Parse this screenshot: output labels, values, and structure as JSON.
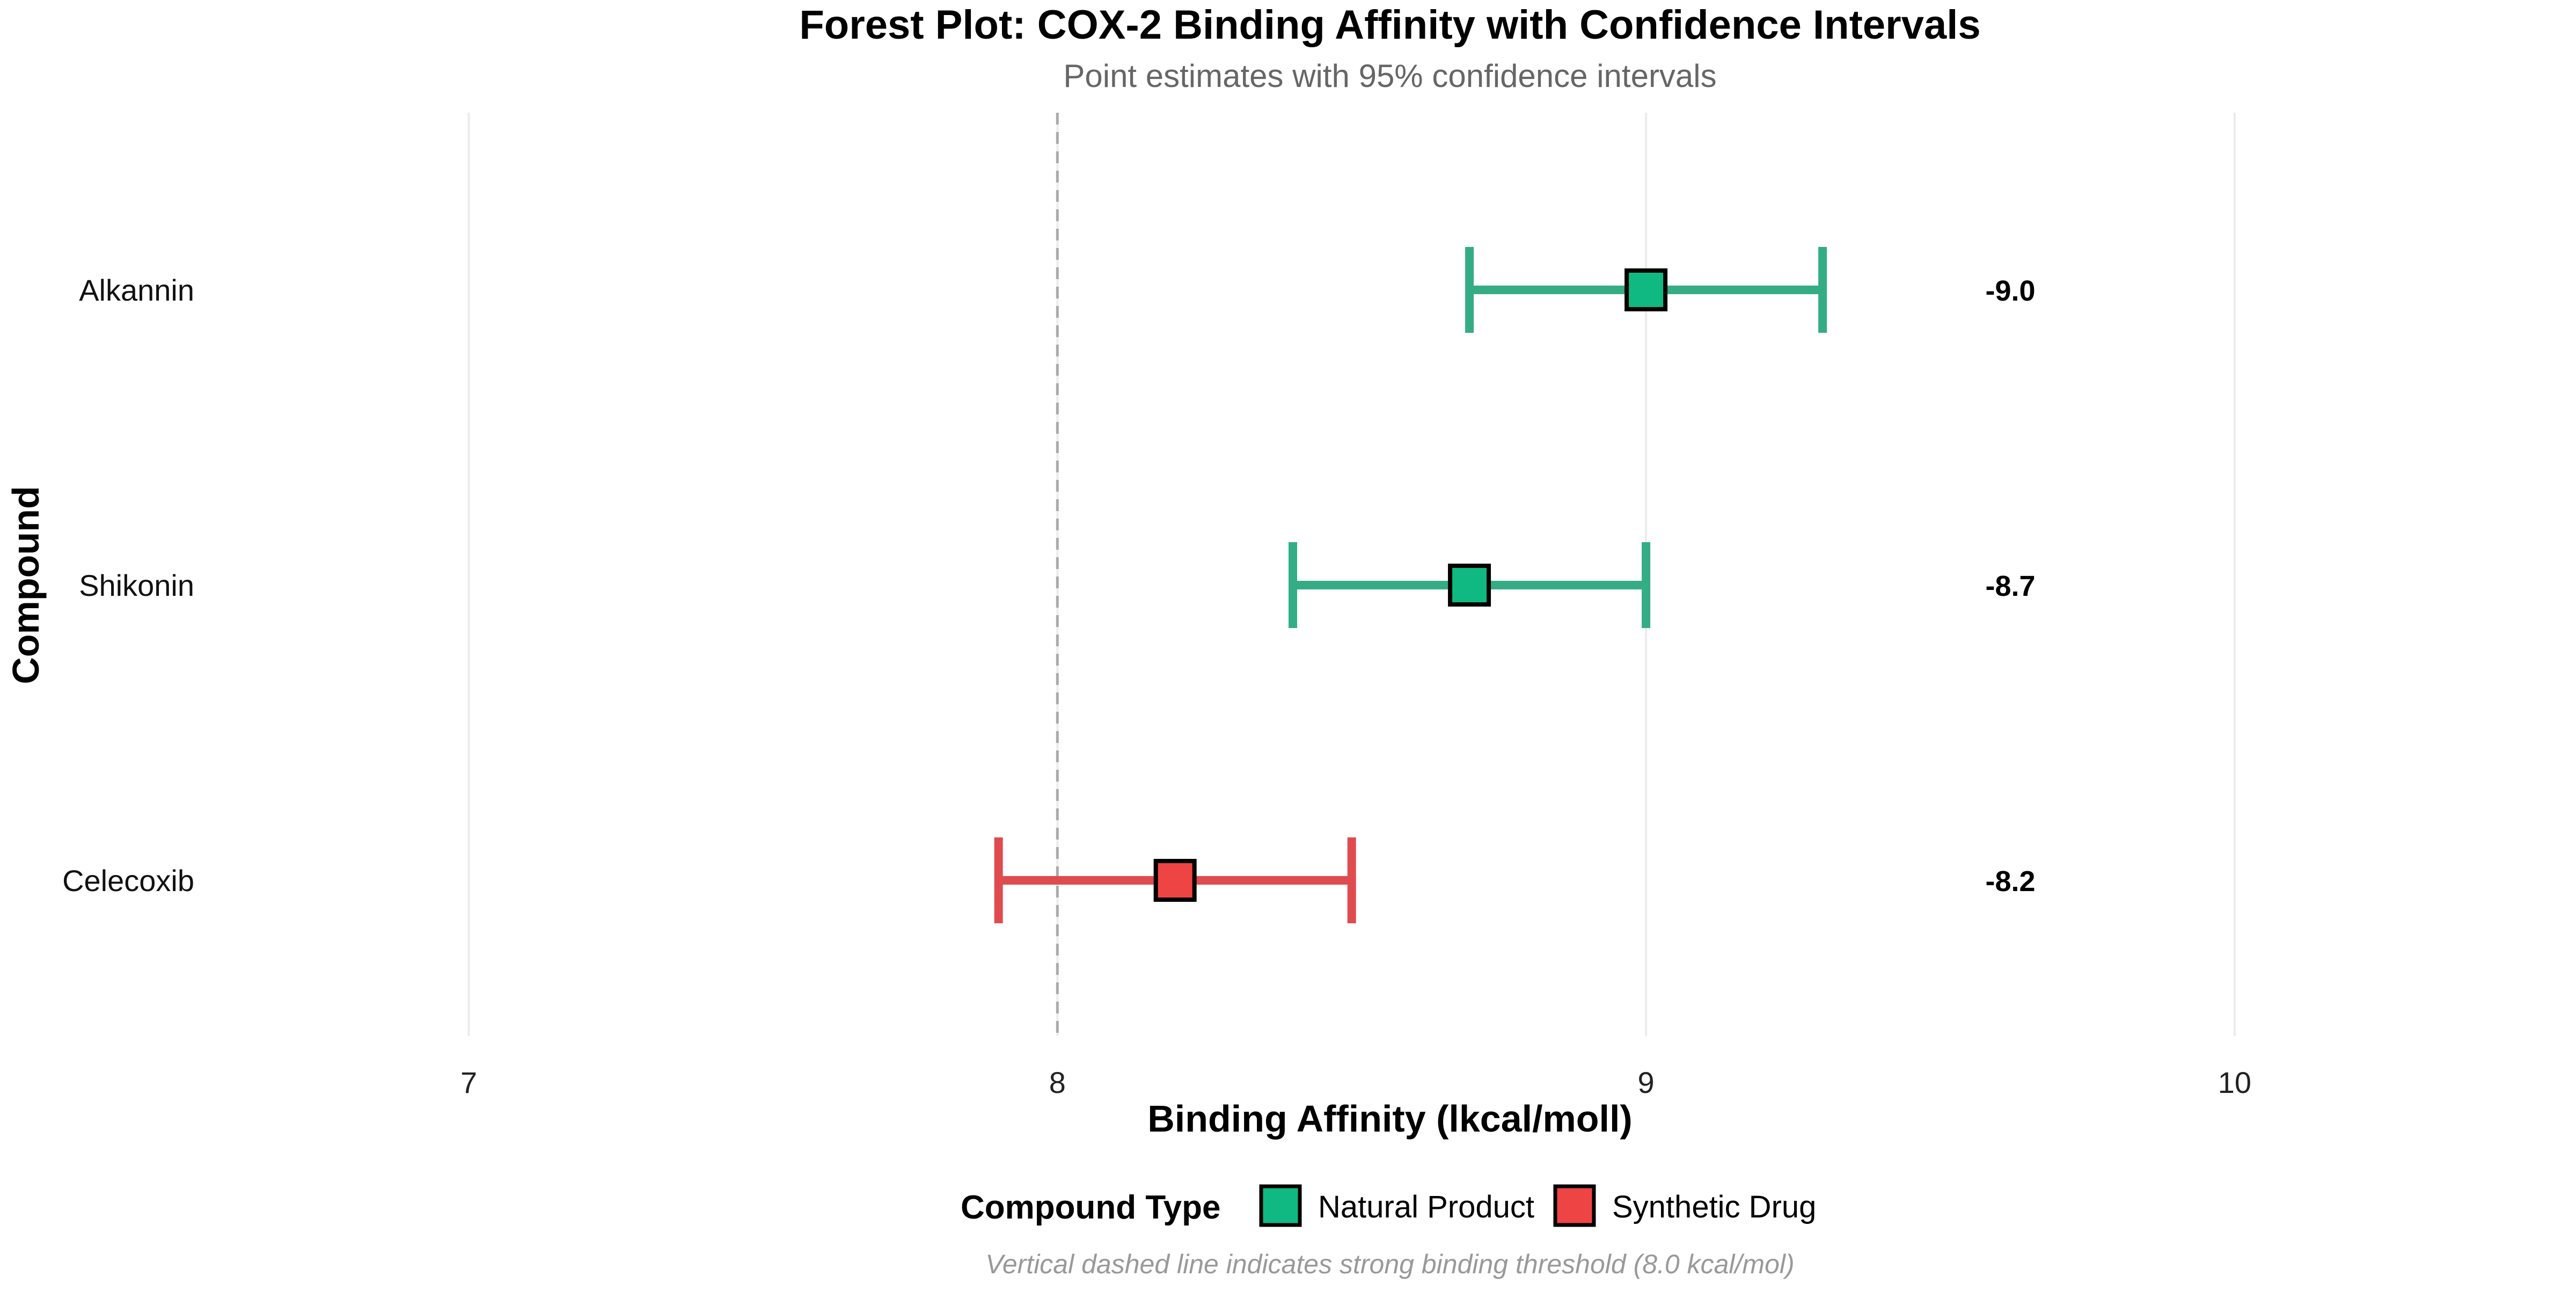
{
  "colors": {
    "natural": "#10B981",
    "synthetic": "#EF4444",
    "natural_line": "#34AD85",
    "synthetic_line": "#E04B4F",
    "grid": "#EBEBEB",
    "threshold": "#AAAAAA",
    "title": "#000000",
    "subtitle": "#666666",
    "caption": "#999999"
  },
  "chart_data": {
    "type": "forest",
    "title": "Forest Plot: COX-2 Binding Affinity with Confidence Intervals",
    "subtitle": "Point estimates with 95% confidence intervals",
    "xlabel": "Binding Affinity (lkcal/moll)",
    "ylabel": "Compound",
    "xlim": [
      6.55,
      10.58
    ],
    "x_ticks": [
      7,
      8,
      9,
      10
    ],
    "x_tick_labels": [
      "7",
      "8",
      "9",
      "10"
    ],
    "grid": "vertical major",
    "threshold": 8.0,
    "legend_position": "bottom",
    "legend": {
      "title": "Compound Type",
      "entries": [
        {
          "label": "Natural Product",
          "color_key": "natural"
        },
        {
          "label": "Synthetic Drug",
          "color_key": "synthetic"
        }
      ]
    },
    "rows": [
      {
        "compound": "Alkannin",
        "estimate": 9.0,
        "ci_low": 8.7,
        "ci_high": 9.3,
        "label": "-9.0",
        "type": "Natural Product"
      },
      {
        "compound": "Shikonin",
        "estimate": 8.7,
        "ci_low": 8.4,
        "ci_high": 9.0,
        "label": "-8.7",
        "type": "Natural Product"
      },
      {
        "compound": "Celecoxib",
        "estimate": 8.2,
        "ci_low": 7.9,
        "ci_high": 8.5,
        "label": "-8.2",
        "type": "Synthetic Drug"
      }
    ],
    "caption": "Vertical dashed line indicates strong binding threshold (8.0 kcal/mol)"
  }
}
